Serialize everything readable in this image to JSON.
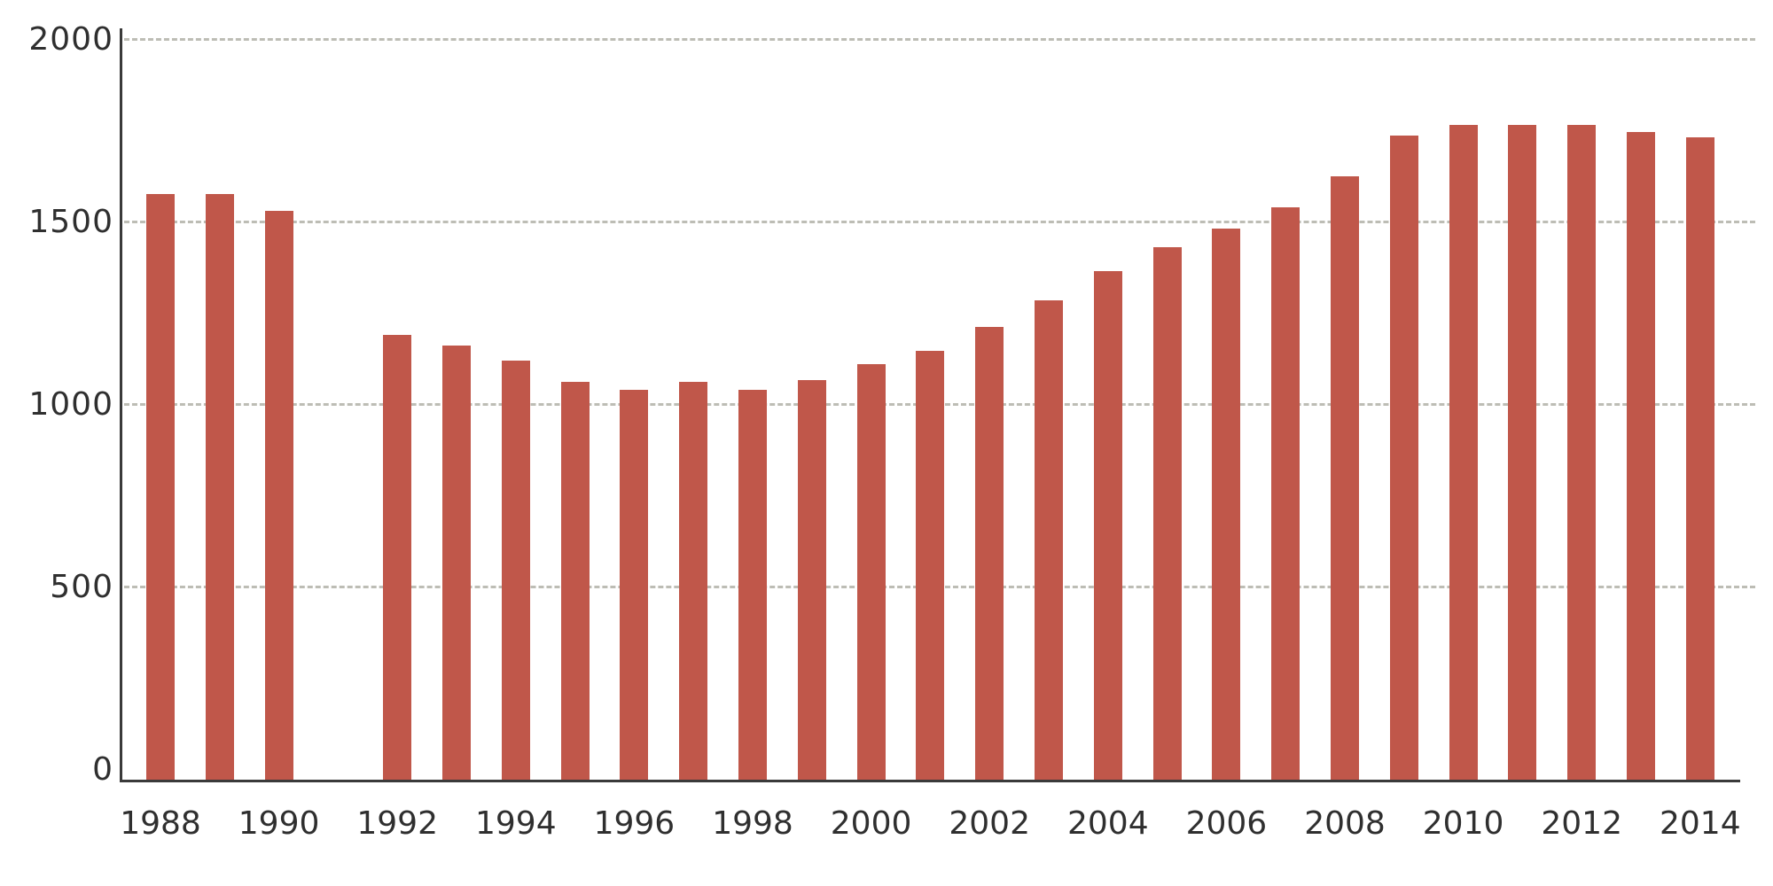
{
  "chart_data": {
    "type": "bar",
    "title": "",
    "xlabel": "",
    "ylabel": "",
    "ylim": [
      0,
      2000
    ],
    "yticks": [
      0,
      500,
      1000,
      1500,
      2000
    ],
    "ytick_labels": [
      "0",
      "500",
      "1000",
      "1500",
      "2000"
    ],
    "xtick_labels": [
      "1988",
      "1990",
      "1992",
      "1994",
      "1996",
      "1998",
      "2000",
      "2002",
      "2004",
      "2006",
      "2008",
      "2010",
      "2012",
      "2014"
    ],
    "grid": true,
    "grid_style": "dashed horizontal",
    "legend": null,
    "bar_color": "#c0574a",
    "categories": [
      "1988",
      "1989",
      "1990",
      "1991",
      "1992",
      "1993",
      "1994",
      "1995",
      "1996",
      "1997",
      "1998",
      "1999",
      "2000",
      "2001",
      "2002",
      "2003",
      "2004",
      "2005",
      "2006",
      "2007",
      "2008",
      "2009",
      "2010",
      "2011",
      "2012",
      "2013",
      "2014"
    ],
    "values": [
      1575,
      1575,
      1530,
      null,
      1190,
      1160,
      1120,
      1060,
      1040,
      1060,
      1040,
      1065,
      1110,
      1145,
      1210,
      1285,
      1365,
      1430,
      1480,
      1540,
      1625,
      1735,
      1765,
      1765,
      1765,
      1745,
      1730
    ]
  }
}
